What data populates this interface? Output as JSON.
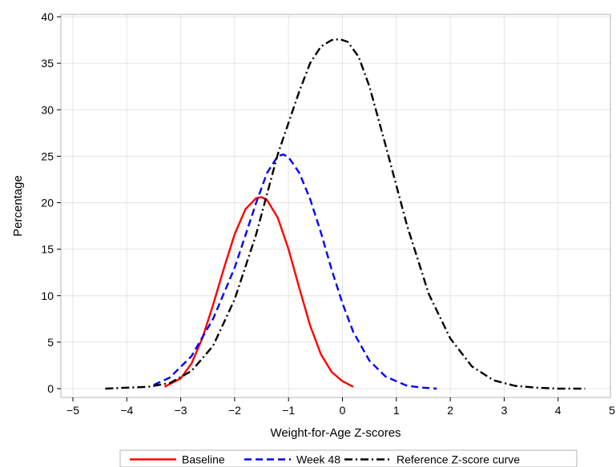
{
  "chart_data": {
    "type": "line",
    "title": "",
    "xlabel": "Weight-for-Age Z-scores",
    "ylabel": "Percentage",
    "xlim": [
      -5,
      5
    ],
    "ylim": [
      0,
      40
    ],
    "xticks": [
      -5,
      -4,
      -3,
      -2,
      -1,
      0,
      1,
      2,
      3,
      4,
      5
    ],
    "yticks": [
      0,
      5,
      10,
      15,
      20,
      25,
      30,
      35,
      40
    ],
    "xtick_labels": [
      "−5",
      "−4",
      "−3",
      "−2",
      "−1",
      "0",
      "1",
      "2",
      "3",
      "4",
      "5"
    ],
    "ytick_labels": [
      "0",
      "5",
      "10",
      "15",
      "20",
      "25",
      "30",
      "35",
      "40"
    ],
    "grid": true,
    "legend_position": "bottom",
    "series": [
      {
        "name": "Baseline",
        "color": "#ff0000",
        "dash": "solid",
        "x": [
          -3.3,
          -3.0,
          -2.8,
          -2.6,
          -2.4,
          -2.2,
          -2.0,
          -1.8,
          -1.6,
          -1.5,
          -1.4,
          -1.2,
          -1.0,
          -0.8,
          -0.6,
          -0.4,
          -0.2,
          0.0,
          0.2
        ],
        "y": [
          0.2,
          1.1,
          2.7,
          5.4,
          9.0,
          12.9,
          16.6,
          19.3,
          20.5,
          20.6,
          20.3,
          18.4,
          15.0,
          10.8,
          6.8,
          3.7,
          1.8,
          0.8,
          0.2
        ]
      },
      {
        "name": "Week 48",
        "color": "#0000ff",
        "dash": "dashed",
        "x": [
          -3.5,
          -3.2,
          -2.8,
          -2.4,
          -2.0,
          -1.8,
          -1.6,
          -1.4,
          -1.2,
          -1.1,
          -1.0,
          -0.8,
          -0.6,
          -0.4,
          -0.2,
          0.0,
          0.2,
          0.5,
          0.8,
          1.2,
          1.5,
          1.75
        ],
        "y": [
          0.4,
          1.2,
          3.5,
          7.5,
          13.0,
          16.5,
          20.0,
          23.2,
          25.0,
          25.2,
          24.9,
          23.2,
          20.4,
          16.8,
          12.8,
          9.2,
          6.1,
          3.0,
          1.3,
          0.3,
          0.1,
          0.0
        ]
      },
      {
        "name": "Reference Z-score curve",
        "color": "#000000",
        "dash": "dashdot",
        "x": [
          -4.4,
          -4.0,
          -3.6,
          -3.2,
          -2.8,
          -2.4,
          -2.0,
          -1.6,
          -1.2,
          -0.8,
          -0.6,
          -0.4,
          -0.2,
          -0.05,
          0.1,
          0.3,
          0.5,
          0.8,
          1.2,
          1.6,
          2.0,
          2.4,
          2.8,
          3.2,
          3.6,
          4.0,
          4.5
        ],
        "y": [
          0.0,
          0.1,
          0.2,
          0.6,
          1.9,
          4.6,
          9.6,
          16.6,
          25.2,
          32.0,
          35.0,
          36.8,
          37.5,
          37.6,
          37.3,
          35.7,
          32.5,
          26.2,
          17.5,
          10.2,
          5.4,
          2.4,
          0.9,
          0.3,
          0.1,
          0.0,
          0.0
        ]
      }
    ]
  }
}
